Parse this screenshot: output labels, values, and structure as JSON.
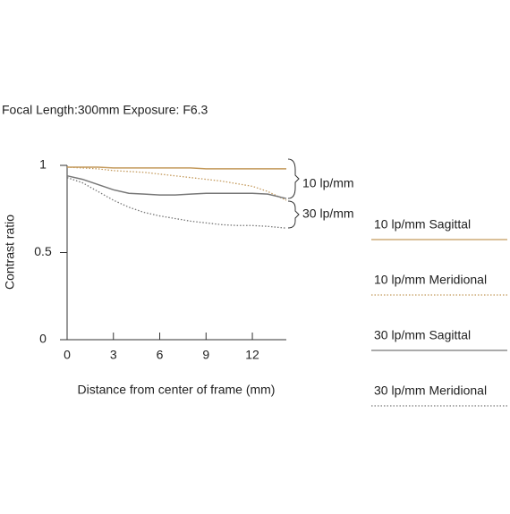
{
  "chart_data": {
    "type": "line",
    "title": "Focal Length:300mm  Exposure: F6.3",
    "x_label": "Distance from center of frame (mm)",
    "y_label": "Contrast ratio",
    "x": [
      0,
      1,
      2,
      3,
      4,
      5,
      6,
      7,
      8,
      9,
      10,
      11,
      12,
      13,
      14.2
    ],
    "series": [
      {
        "name": "10 lp/mm Sagittal",
        "color": "#c49a5c",
        "style": "solid",
        "values": [
          0.99,
          0.99,
          0.99,
          0.985,
          0.985,
          0.985,
          0.985,
          0.985,
          0.985,
          0.98,
          0.98,
          0.98,
          0.98,
          0.98,
          0.98
        ]
      },
      {
        "name": "10 lp/mm Meridional",
        "color": "#c49a5c",
        "style": "dotted",
        "values": [
          0.99,
          0.985,
          0.98,
          0.97,
          0.965,
          0.96,
          0.95,
          0.94,
          0.93,
          0.92,
          0.91,
          0.895,
          0.88,
          0.85,
          0.8
        ]
      },
      {
        "name": "30 lp/mm Sagittal",
        "color": "#777777",
        "style": "solid",
        "values": [
          0.94,
          0.92,
          0.89,
          0.86,
          0.84,
          0.835,
          0.83,
          0.83,
          0.835,
          0.84,
          0.84,
          0.84,
          0.84,
          0.835,
          0.81
        ]
      },
      {
        "name": "30 lp/mm Meridional",
        "color": "#777777",
        "style": "dotted",
        "values": [
          0.93,
          0.9,
          0.85,
          0.8,
          0.76,
          0.73,
          0.71,
          0.695,
          0.68,
          0.67,
          0.66,
          0.655,
          0.655,
          0.65,
          0.64
        ]
      }
    ],
    "annotations": [
      "10 lp/mm",
      "30 lp/mm"
    ],
    "xlim": [
      0,
      14.2
    ],
    "xticks": [
      0,
      3,
      6,
      9,
      12
    ],
    "ylim": [
      0,
      1
    ],
    "yticks": [
      0,
      0.5,
      1
    ],
    "grid": false
  }
}
